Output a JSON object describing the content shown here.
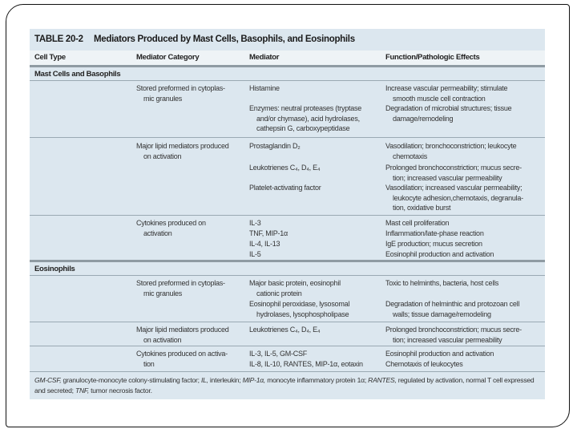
{
  "table": {
    "number": "TABLE 20-2",
    "title": "Mediators Produced by Mast Cells, Basophils, and Eosinophils",
    "headers": [
      "Cell Type",
      "Mediator Category",
      "Mediator",
      "Function/Pathologic Effects"
    ],
    "sections": [
      {
        "name": "Mast Cells and Basophils",
        "rows": [
          {
            "category": "Stored preformed in cytoplas-\nmic granules",
            "entries": [
              {
                "mediator": "Histamine",
                "function": "Increase vascular permeability; stimulate\nsmooth muscle cell contraction"
              },
              {
                "mediator": "Enzymes: neutral proteases (tryptase\nand/or chymase), acid hydrolases,\ncathepsin G, carboxypeptidase",
                "function": "Degradation of microbial structures; tissue\ndamage/remodeling"
              }
            ]
          },
          {
            "category": "Major lipid mediators produced\non activation",
            "entries": [
              {
                "mediator": "Prostaglandin D₂",
                "function": "Vasodilation; bronchoconstriction; leukocyte\nchemotaxis"
              },
              {
                "mediator": "Leukotrienes C₄, D₄, E₄",
                "function": "Prolonged bronchoconstriction; mucus secre-\ntion; increased vascular permeability"
              },
              {
                "mediator": "Platelet-activating factor",
                "function": "Vasodilation; increased vascular permeability;\nleukocyte adhesion,chemotaxis, degranula-\ntion, oxidative burst"
              }
            ]
          },
          {
            "category": "Cytokines produced on\nactivation",
            "entries": [
              {
                "mediator": "IL-3",
                "function": "Mast cell proliferation"
              },
              {
                "mediator": "TNF, MIP-1α",
                "function": "Inflammation/late-phase reaction"
              },
              {
                "mediator": "IL-4, IL-13",
                "function": "IgE production; mucus secretion"
              },
              {
                "mediator": "IL-5",
                "function": "Eosinophil production and activation"
              }
            ]
          }
        ]
      },
      {
        "name": "Eosinophils",
        "rows": [
          {
            "category": "Stored preformed in cytoplas-\nmic granules",
            "entries": [
              {
                "mediator": "Major basic protein, eosinophil\ncationic protein",
                "function": "Toxic to helminths, bacteria, host cells"
              },
              {
                "mediator": "Eosinophil peroxidase, lysosomal\nhydrolases, lysophospholipase",
                "function": "Degradation of helminthic and protozoan cell\nwalls; tissue damage/remodeling"
              }
            ]
          },
          {
            "category": "Major lipid mediators produced\non activation",
            "entries": [
              {
                "mediator": "Leukotrienes C₄, D₄, E₄",
                "function": "Prolonged bronchoconstriction; mucus secre-\ntion; increased vascular permeability"
              }
            ]
          },
          {
            "category": "Cytokines produced on activa-\ntion",
            "entries": [
              {
                "mediator": "IL-3, IL-5, GM-CSF\nIL-8, IL-10, RANTES, MIP-1α, eotaxin",
                "function": "Eosinophil production and activation\nChemotaxis of leukocytes"
              }
            ]
          }
        ]
      }
    ],
    "footnote": [
      {
        "abbr": "GM-CSF,",
        "def": " granulocyte-monocyte colony-stimulating factor; "
      },
      {
        "abbr": "IL,",
        "def": " interleukin; "
      },
      {
        "abbr": "MIP-1α,",
        "def": " monocyte inflammatory protein 1α; "
      },
      {
        "abbr": "RANTES,",
        "def": " regulated by activation, normal T cell expressed and secreted; "
      },
      {
        "abbr": "TNF,",
        "def": " tumor necrosis factor."
      }
    ]
  }
}
